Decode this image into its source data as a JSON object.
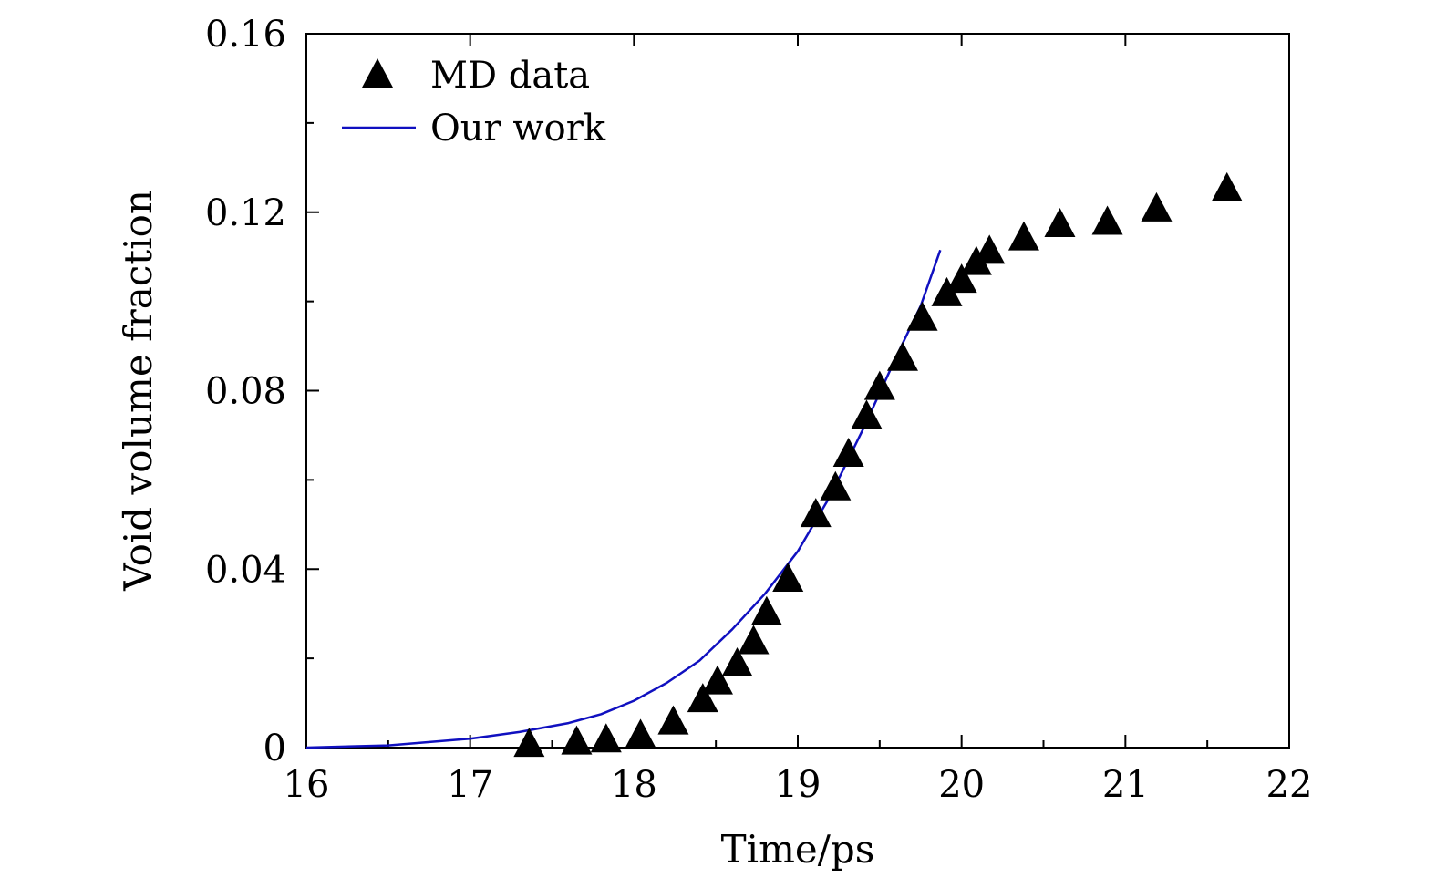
{
  "chart_data": {
    "type": "scatter",
    "title": "",
    "xlabel": "Time/ps",
    "ylabel": "Void volume fraction",
    "xlim": [
      16,
      22
    ],
    "ylim": [
      0,
      0.16
    ],
    "x_ticks": [
      16,
      17,
      18,
      19,
      20,
      21,
      22
    ],
    "x_tick_labels": [
      "16",
      "17",
      "18",
      "19",
      "20",
      "21",
      "22"
    ],
    "y_ticks": [
      0,
      0.04,
      0.08,
      0.12,
      0.16
    ],
    "y_tick_labels": [
      "0",
      "0.04",
      "0.08",
      "0.12",
      "0.16"
    ],
    "grid": false,
    "legend_position": "top-left",
    "series": [
      {
        "name": "MD data",
        "type": "scatter",
        "marker": "triangle",
        "color": "#000000",
        "x": [
          17.36,
          17.65,
          17.83,
          18.04,
          18.24,
          18.42,
          18.51,
          18.63,
          18.73,
          18.81,
          18.94,
          19.11,
          19.23,
          19.31,
          19.42,
          19.5,
          19.64,
          19.76,
          19.91,
          20.0,
          20.09,
          20.17,
          20.38,
          20.6,
          20.89,
          21.19,
          21.62
        ],
        "y": [
          0.001,
          0.0015,
          0.002,
          0.003,
          0.006,
          0.011,
          0.015,
          0.019,
          0.024,
          0.0305,
          0.038,
          0.0525,
          0.0585,
          0.066,
          0.0745,
          0.081,
          0.0875,
          0.0965,
          0.102,
          0.105,
          0.109,
          0.1115,
          0.1145,
          0.1175,
          0.118,
          0.121,
          0.1255
        ]
      },
      {
        "name": "Our work",
        "type": "line",
        "color": "#1010c0",
        "x": [
          16.0,
          16.5,
          17.0,
          17.3,
          17.6,
          17.8,
          18.0,
          18.2,
          18.4,
          18.6,
          18.8,
          19.0,
          19.2,
          19.4,
          19.6,
          19.75,
          19.87
        ],
        "y": [
          0.0,
          0.0005,
          0.002,
          0.0035,
          0.0055,
          0.0075,
          0.0105,
          0.0145,
          0.0195,
          0.0265,
          0.0345,
          0.044,
          0.0565,
          0.0715,
          0.0875,
          0.099,
          0.1115
        ]
      }
    ]
  }
}
